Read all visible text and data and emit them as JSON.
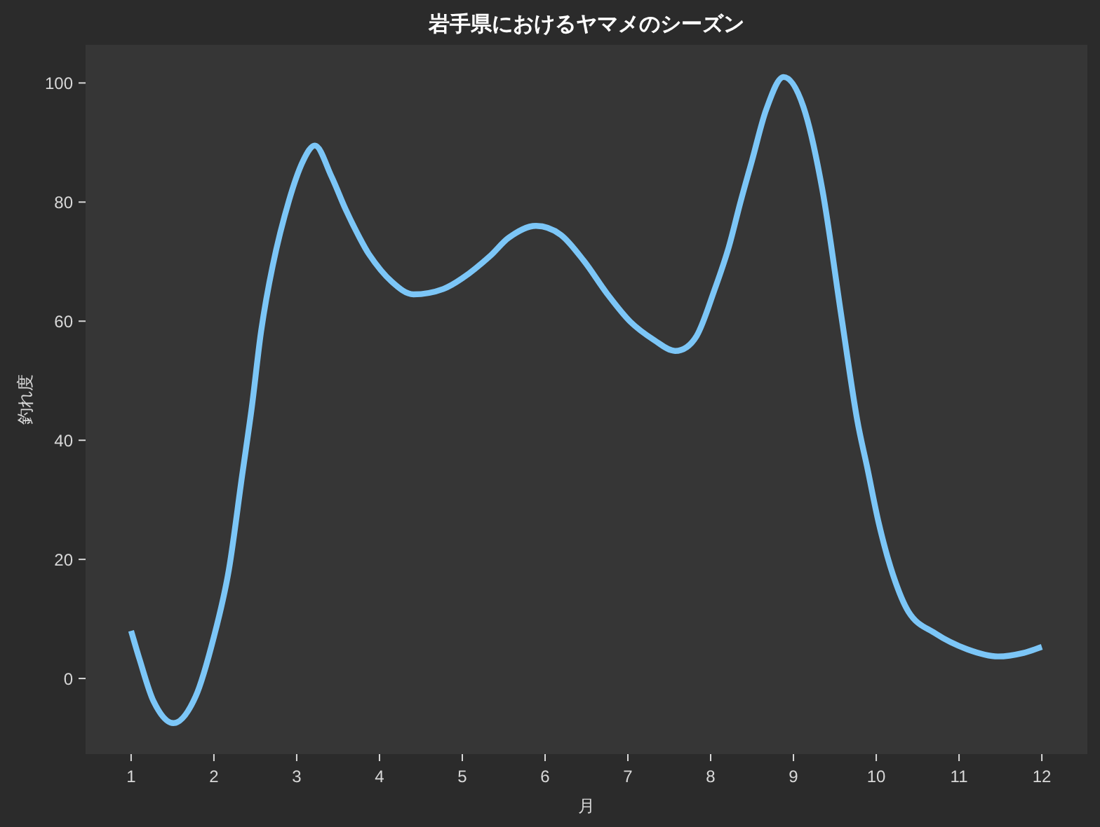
{
  "chart_data": {
    "type": "line",
    "title": "岩手県におけるヤマメのシーズン",
    "xlabel": "月",
    "ylabel": "釣れ度",
    "xlim": [
      0.45,
      12.55
    ],
    "xticks": [
      1,
      2,
      3,
      4,
      5,
      6,
      7,
      8,
      9,
      10,
      11,
      12
    ],
    "ylim": [
      -12.7,
      106.4
    ],
    "yticks": [
      0,
      20,
      40,
      60,
      80,
      100
    ],
    "line_style": "solid",
    "series": [
      {
        "color": "#7cc6f7",
        "x": [
          1.0,
          1.1,
          1.27,
          1.51,
          1.78,
          2.0,
          2.18,
          2.34,
          2.46,
          2.57,
          2.71,
          2.91,
          3.08,
          3.22,
          3.42,
          3.59,
          3.76,
          3.87,
          4.15,
          4.41,
          4.77,
          5.0,
          5.34,
          5.56,
          5.89,
          6.19,
          6.47,
          6.75,
          7.03,
          7.32,
          7.57,
          7.83,
          8.05,
          8.22,
          8.36,
          8.5,
          8.67,
          8.88,
          9.12,
          9.35,
          9.58,
          9.77,
          9.89,
          10.03,
          10.2,
          10.39,
          10.71,
          11.1,
          11.47,
          11.78,
          12.0
        ],
        "values": [
          8,
          3.3,
          -3.8,
          -7.5,
          -3,
          7,
          18.2,
          34,
          45.8,
          58.3,
          69.3,
          80.4,
          87,
          89.5,
          84.3,
          78.8,
          74,
          71.3,
          66.6,
          64.5,
          65.4,
          67.2,
          71,
          74,
          76,
          74.5,
          70.1,
          64.6,
          59.9,
          56.8,
          55,
          57.5,
          65.4,
          72.5,
          80,
          87,
          95.5,
          101,
          96,
          82,
          60.7,
          43.4,
          35.5,
          26.1,
          17.5,
          11.2,
          7.6,
          4.9,
          3.7,
          4.3,
          5.3
        ]
      }
    ]
  }
}
